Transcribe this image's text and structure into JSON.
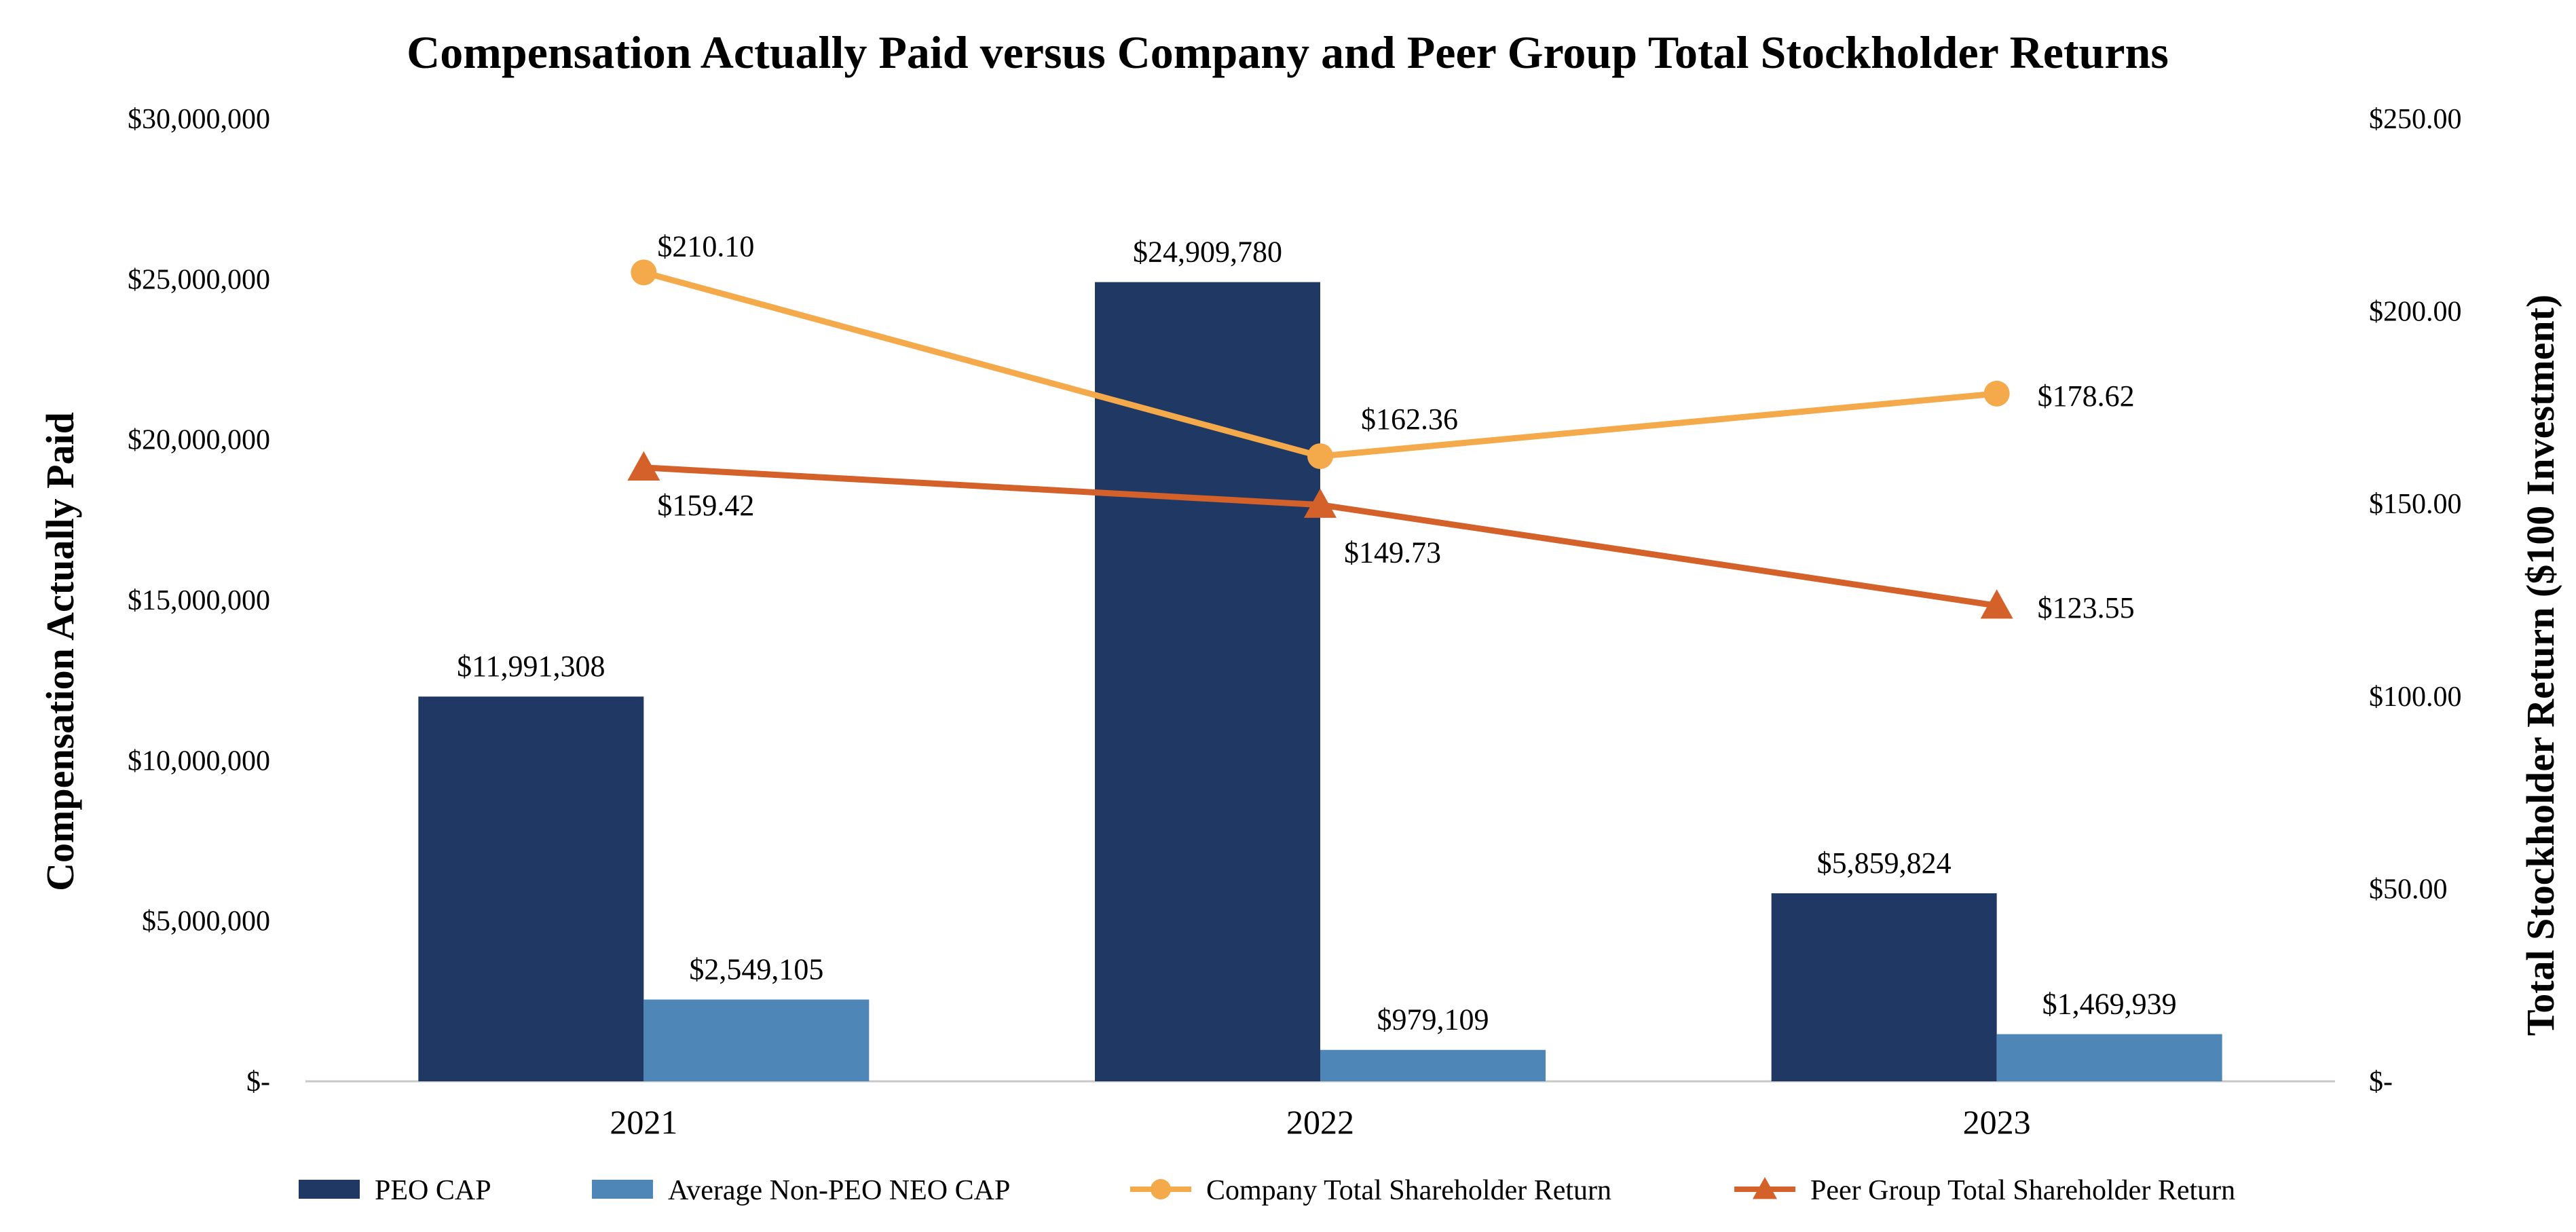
{
  "chart_data": {
    "type": "bar",
    "title": "Compensation Actually Paid versus Company and Peer Group Total Stockholder Returns",
    "ylabel": "Compensation Actually Paid",
    "y2label": "Total Stockholder Return ($100 Investment)",
    "xlabel": "",
    "categories": [
      "2021",
      "2022",
      "2023"
    ],
    "ylim": [
      0,
      30000000
    ],
    "y2lim": [
      0,
      250
    ],
    "y_ticks": [
      0,
      5000000,
      10000000,
      15000000,
      20000000,
      25000000,
      30000000
    ],
    "y_tick_labels": [
      "$-",
      "$5,000,000",
      "$10,000,000",
      "$15,000,000",
      "$20,000,000",
      "$25,000,000",
      "$30,000,000"
    ],
    "y2_ticks": [
      0,
      50,
      100,
      150,
      200,
      250
    ],
    "y2_tick_labels": [
      "$-",
      "$50.00",
      "$100.00",
      "$150.00",
      "$200.00",
      "$250.00"
    ],
    "grid": false,
    "legend_position": "bottom",
    "series": [
      {
        "name": "PEO CAP",
        "kind": "bar",
        "axis": "left",
        "color": "#203864",
        "values": [
          11991308,
          24909780,
          5859824
        ],
        "labels": [
          "$11,991,308",
          "$24,909,780",
          "$5,859,824"
        ]
      },
      {
        "name": "Average Non-PEO NEO CAP",
        "kind": "bar",
        "axis": "left",
        "color": "#4F86B8",
        "values": [
          2549105,
          979109,
          1469939
        ],
        "labels": [
          "$2,549,105",
          "$979,109",
          "$1,469,939"
        ]
      },
      {
        "name": "Company Total Shareholder Return",
        "kind": "line",
        "marker": "circle",
        "axis": "right",
        "color": "#F4A94B",
        "values": [
          210.1,
          162.36,
          178.62
        ],
        "labels": [
          "$210.10",
          "$162.36",
          "$178.62"
        ]
      },
      {
        "name": "Peer Group Total Shareholder Return",
        "kind": "line",
        "marker": "triangle",
        "axis": "right",
        "color": "#D4602A",
        "values": [
          159.42,
          149.73,
          123.55
        ],
        "labels": [
          "$159.42",
          "$149.73",
          "$123.55"
        ]
      }
    ]
  }
}
